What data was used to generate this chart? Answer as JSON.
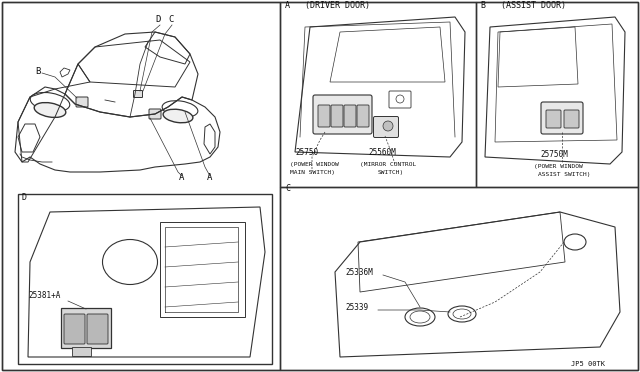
{
  "bg_color": "#ffffff",
  "panel_bg": "#ffffff",
  "border_color": "#333333",
  "line_color": "#333333",
  "text_color": "#111111",
  "watermark": "JP5 00TK",
  "figsize": [
    6.4,
    3.72
  ],
  "dpi": 100,
  "panels": {
    "main": [
      0.0,
      0.0,
      0.435,
      1.0
    ],
    "A": [
      0.435,
      0.47,
      0.72,
      1.0
    ],
    "B": [
      0.72,
      0.47,
      1.0,
      1.0
    ],
    "C": [
      0.435,
      0.0,
      1.0,
      0.47
    ],
    "D": [
      0.27,
      0.03,
      0.76,
      0.48
    ]
  },
  "panel_A_label": "A   (DRIVER DOOR)",
  "panel_B_label": "B   (ASSIST DOOR)",
  "panel_C_label": "C",
  "panel_D_label": "D"
}
